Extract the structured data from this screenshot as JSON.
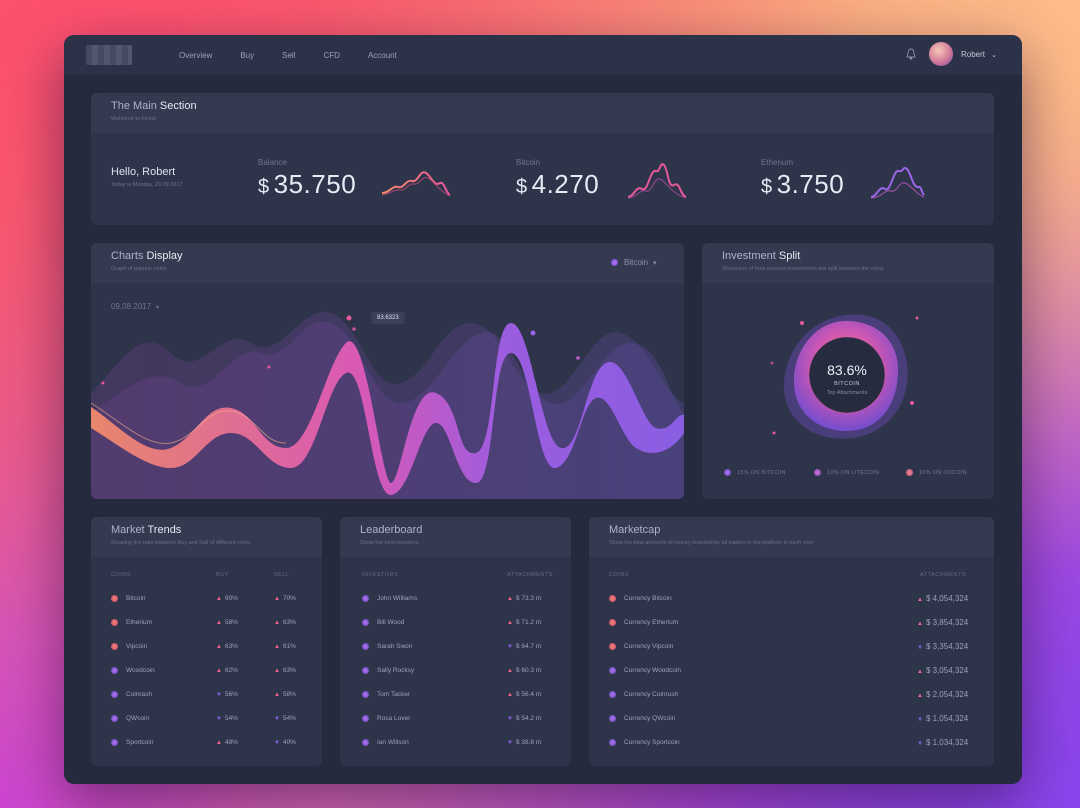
{
  "nav": [
    "Overview",
    "Buy",
    "Sell",
    "CFD",
    "Account"
  ],
  "user": {
    "name": "Robert"
  },
  "main_section": {
    "title_a": "The Main ",
    "title_b": "Section",
    "subtitle": "Welcome to Finlist",
    "hello": "Hello, Robert",
    "date": "Today is Monday, 20.09.2017",
    "stats": [
      {
        "label": "Balance",
        "currency": "$",
        "value": "35.750"
      },
      {
        "label": "Bitcoin",
        "currency": "$",
        "value": "4.270"
      },
      {
        "label": "Etherium",
        "currency": "$",
        "value": "3.750"
      }
    ]
  },
  "charts_display": {
    "title_a": "Charts ",
    "title_b": "Display",
    "subtitle": "Graph of popular coins",
    "selected_coin": "Bitcoin",
    "date": "09.08.2017",
    "tooltip": "83.6323"
  },
  "investment_split": {
    "title_a": "Investment ",
    "title_b": "Split",
    "subtitle": "Showcase of how account investments are split between the coins",
    "percent": "83.6%",
    "coin": "BITCOIN",
    "caption": "Top Attachments",
    "legend": [
      "15% ON BITCOIN",
      "10% ON LITECOIN",
      "10% ON OXCOIN"
    ]
  },
  "market_trends": {
    "title_a": "Market ",
    "title_b": "Trends",
    "subtitle": "Showing the ratio between Buy and Sell of different coins",
    "headers": [
      "COINS",
      "BUY",
      "SELL"
    ],
    "rows": [
      {
        "coin": "Bitcoin",
        "buy": "60%",
        "buy_dir": "up",
        "sell": "70%",
        "sell_dir": "up"
      },
      {
        "coin": "Etherium",
        "buy": "58%",
        "buy_dir": "up",
        "sell": "63%",
        "sell_dir": "up"
      },
      {
        "coin": "Vipcoin",
        "buy": "63%",
        "buy_dir": "up",
        "sell": "61%",
        "sell_dir": "up"
      },
      {
        "coin": "Woodcoin",
        "buy": "62%",
        "buy_dir": "up",
        "sell": "63%",
        "sell_dir": "up"
      },
      {
        "coin": "Coinrash",
        "buy": "56%",
        "buy_dir": "down",
        "sell": "58%",
        "sell_dir": "up"
      },
      {
        "coin": "QWcoin",
        "buy": "54%",
        "buy_dir": "down",
        "sell": "54%",
        "sell_dir": "down"
      },
      {
        "coin": "Sportcoin",
        "buy": "48%",
        "buy_dir": "up",
        "sell": "40%",
        "sell_dir": "down"
      }
    ]
  },
  "leaderboard": {
    "title_a": "Leaderboard",
    "title_b": "",
    "subtitle": "Show the best investors",
    "headers": [
      "INVESTORS",
      "ATTACHMENTS"
    ],
    "rows": [
      {
        "name": "John Williams",
        "value": "$ 73.3 m",
        "dir": "up"
      },
      {
        "name": "Bill Wood",
        "value": "$ 71.2 m",
        "dir": "up"
      },
      {
        "name": "Sarah Swon",
        "value": "$ 64.7 m",
        "dir": "down"
      },
      {
        "name": "Sally Rocksy",
        "value": "$ 60.3 m",
        "dir": "up"
      },
      {
        "name": "Tom Tacker",
        "value": "$ 56.4 m",
        "dir": "up"
      },
      {
        "name": "Rosa Lover",
        "value": "$ 54.2 m",
        "dir": "down"
      },
      {
        "name": "Ian Willson",
        "value": "$ 38.8 m",
        "dir": "down"
      }
    ]
  },
  "marketcap": {
    "title_a": "Marketcap",
    "title_b": "",
    "subtitle": "Show the total amounts of money invested by all traders in the platform in each coin",
    "headers": [
      "COINS",
      "ATTACHMENTS"
    ],
    "rows": [
      {
        "name": "Currency Bitcoin",
        "value": "$ 4,054,324",
        "dir": "up"
      },
      {
        "name": "Currency Etherium",
        "value": "$ 3,854,324",
        "dir": "up"
      },
      {
        "name": "Currency Vipcoin",
        "value": "$ 3,354,324",
        "dir": "down"
      },
      {
        "name": "Currency Woodcoin",
        "value": "$ 3,054,324",
        "dir": "up"
      },
      {
        "name": "Currency Coinrush",
        "value": "$ 2,054,324",
        "dir": "up"
      },
      {
        "name": "Currency QWcoin",
        "value": "$ 1,054,324",
        "dir": "down"
      },
      {
        "name": "Currency Sportcoin",
        "value": "$ 1,034,324",
        "dir": "down"
      }
    ]
  },
  "colors": {
    "up": "#ee6a8c",
    "down": "#8a62e6",
    "pink": "#e7589a",
    "purple": "#8c5fe8",
    "orange": "#f08a6c"
  }
}
